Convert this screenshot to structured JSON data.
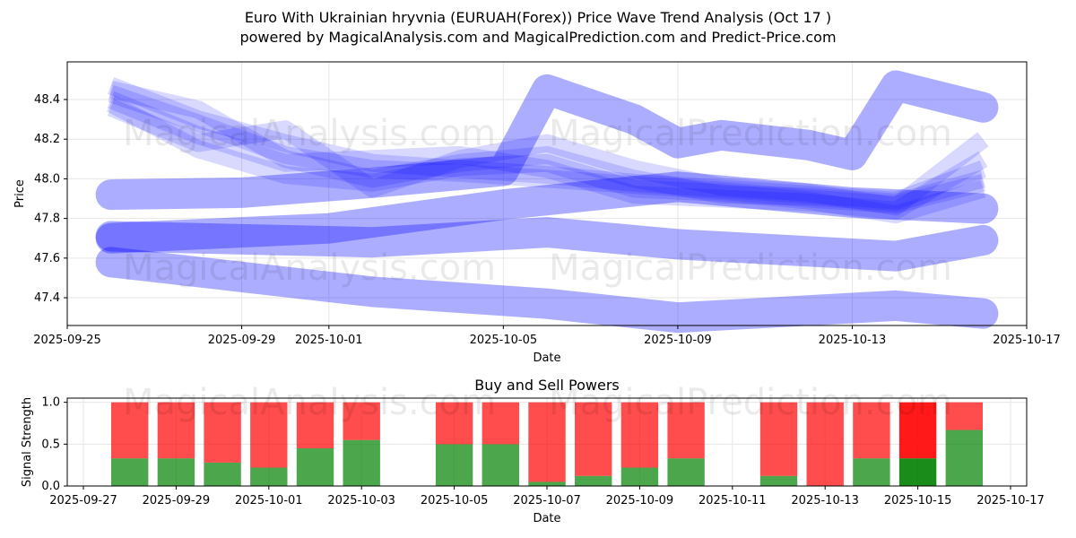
{
  "chart_title_line1": "Euro With Ukrainian hryvnia (EURUAH(Forex)) Price Wave Trend Analysis (Oct 17 )",
  "chart_title_line2": "powered by MagicalAnalysis.com and MagicalPrediction.com and Predict-Price.com",
  "watermarks": [
    "MagicalAnalysis.com",
    "MagicalPrediction.com"
  ],
  "colors": {
    "wave": "#0000ff",
    "buy": "#008000",
    "sell": "#ff0000"
  },
  "chart_data": [
    {
      "type": "area",
      "title": "",
      "xlabel": "Date",
      "ylabel": "Price",
      "xlim": [
        "2025-09-25",
        "2025-10-17"
      ],
      "ylim": [
        47.26,
        48.59
      ],
      "x_ticks": [
        "2025-09-25",
        "2025-09-29",
        "2025-10-01",
        "2025-10-05",
        "2025-10-09",
        "2025-10-13",
        "2025-10-17"
      ],
      "y_ticks": [
        47.4,
        47.6,
        47.8,
        48.0,
        48.2,
        48.4
      ],
      "grid": true,
      "series": [
        {
          "name": "wave-1",
          "dates": [
            "2025-09-26",
            "2025-09-28",
            "2025-09-30",
            "2025-10-02",
            "2025-10-04",
            "2025-10-06",
            "2025-10-08",
            "2025-10-10",
            "2025-10-12",
            "2025-10-14",
            "2025-10-16"
          ],
          "values": [
            48.47,
            48.3,
            48.18,
            48.08,
            48.05,
            48.02,
            47.98,
            47.95,
            47.92,
            47.89,
            48.05
          ]
        },
        {
          "name": "wave-2",
          "dates": [
            "2025-09-26",
            "2025-09-28",
            "2025-09-30",
            "2025-10-02",
            "2025-10-04",
            "2025-10-06",
            "2025-10-08",
            "2025-10-10",
            "2025-10-12",
            "2025-10-14",
            "2025-10-16"
          ],
          "values": [
            48.43,
            48.28,
            48.12,
            48.05,
            48.03,
            48.0,
            47.97,
            47.94,
            47.9,
            47.87,
            47.98
          ]
        },
        {
          "name": "wave-3",
          "dates": [
            "2025-09-26",
            "2025-09-28",
            "2025-09-30",
            "2025-10-02",
            "2025-10-04",
            "2025-10-06",
            "2025-10-08",
            "2025-10-10",
            "2025-10-12",
            "2025-10-14",
            "2025-10-16"
          ],
          "values": [
            48.4,
            48.22,
            48.08,
            48.1,
            48.12,
            48.05,
            47.92,
            47.9,
            47.88,
            47.84,
            48.1
          ]
        },
        {
          "name": "wave-4",
          "dates": [
            "2025-09-26",
            "2025-09-28",
            "2025-09-30",
            "2025-10-02",
            "2025-10-04",
            "2025-10-06",
            "2025-10-08",
            "2025-10-10",
            "2025-10-12",
            "2025-10-14",
            "2025-10-16"
          ],
          "values": [
            48.36,
            48.18,
            48.25,
            47.95,
            48.1,
            48.18,
            48.05,
            47.96,
            47.93,
            47.86,
            48.2
          ]
        },
        {
          "name": "wave-5",
          "dates": [
            "2025-09-26",
            "2025-09-28",
            "2025-09-30",
            "2025-10-02",
            "2025-10-04",
            "2025-10-06",
            "2025-10-08",
            "2025-10-10",
            "2025-10-12",
            "2025-10-14",
            "2025-10-16"
          ],
          "values": [
            48.45,
            48.35,
            48.1,
            48.0,
            48.08,
            48.12,
            48.0,
            47.92,
            47.91,
            47.88,
            48.0
          ]
        },
        {
          "name": "wave-6",
          "dates": [
            "2025-09-26",
            "2025-09-28",
            "2025-09-30",
            "2025-10-02",
            "2025-10-04",
            "2025-10-06",
            "2025-10-08",
            "2025-10-10",
            "2025-10-12",
            "2025-10-14",
            "2025-10-16"
          ],
          "values": [
            48.38,
            48.15,
            48.02,
            47.98,
            48.06,
            48.08,
            47.95,
            47.93,
            47.89,
            47.82,
            47.95
          ]
        },
        {
          "name": "wave-7",
          "dates": [
            "2025-09-26",
            "2025-09-29",
            "2025-10-02",
            "2025-10-05",
            "2025-10-06",
            "2025-10-08",
            "2025-10-09",
            "2025-10-10",
            "2025-10-12",
            "2025-10-13",
            "2025-10-14",
            "2025-10-16"
          ],
          "values": [
            47.92,
            47.93,
            47.98,
            48.04,
            48.45,
            48.3,
            48.18,
            48.22,
            48.17,
            48.12,
            48.47,
            48.36
          ]
        },
        {
          "name": "wave-8",
          "dates": [
            "2025-09-26",
            "2025-10-01",
            "2025-10-05",
            "2025-10-09",
            "2025-10-13",
            "2025-10-16"
          ],
          "values": [
            47.7,
            47.75,
            47.87,
            47.96,
            47.88,
            47.85
          ]
        },
        {
          "name": "wave-9",
          "dates": [
            "2025-09-26",
            "2025-10-02",
            "2025-10-06",
            "2025-10-09",
            "2025-10-14",
            "2025-10-16"
          ],
          "values": [
            47.71,
            47.68,
            47.73,
            47.67,
            47.61,
            47.69
          ]
        },
        {
          "name": "wave-10",
          "dates": [
            "2025-09-26",
            "2025-10-02",
            "2025-10-06",
            "2025-10-09",
            "2025-10-14",
            "2025-10-16"
          ],
          "values": [
            47.58,
            47.43,
            47.37,
            47.3,
            47.36,
            47.32
          ]
        }
      ]
    },
    {
      "type": "bar",
      "title": "Buy and Sell Powers",
      "xlabel": "Date",
      "ylabel": "Signal Strength",
      "xlim": [
        "2025-09-27",
        "2025-10-17"
      ],
      "ylim": [
        0,
        1.05
      ],
      "x_ticks": [
        "2025-09-27",
        "2025-09-29",
        "2025-10-01",
        "2025-10-03",
        "2025-10-05",
        "2025-10-07",
        "2025-10-09",
        "2025-10-11",
        "2025-10-13",
        "2025-10-15",
        "2025-10-17"
      ],
      "y_ticks": [
        "0.0",
        "0.5",
        "1.0"
      ],
      "grid": true,
      "categories": [
        "2025-09-28",
        "2025-09-29",
        "2025-09-30",
        "2025-10-01",
        "2025-10-02",
        "2025-10-03",
        "2025-10-05",
        "2025-10-06",
        "2025-10-07",
        "2025-10-08",
        "2025-10-09",
        "2025-10-10",
        "2025-10-12",
        "2025-10-13",
        "2025-10-14",
        "2025-10-15",
        "2025-10-16"
      ],
      "series": [
        {
          "name": "Buy",
          "values": [
            0.33,
            0.33,
            0.28,
            0.22,
            0.45,
            0.55,
            0.5,
            0.5,
            0.05,
            0.12,
            0.22,
            0.33,
            0.12,
            0.0,
            0.33,
            0.33,
            0.67
          ]
        },
        {
          "name": "Sell",
          "values": [
            0.67,
            0.67,
            0.72,
            0.78,
            0.55,
            0.45,
            0.5,
            0.5,
            0.95,
            0.88,
            0.78,
            0.67,
            0.88,
            1.0,
            0.67,
            0.67,
            0.33
          ]
        }
      ],
      "highlight_index": 15
    }
  ]
}
